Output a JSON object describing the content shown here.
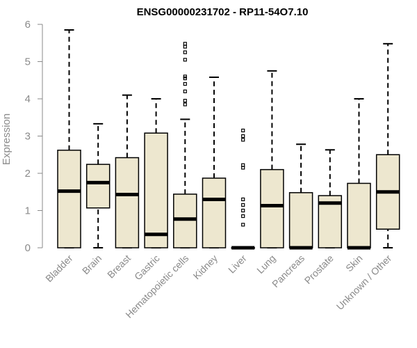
{
  "chart_data": {
    "type": "boxplot",
    "title": "ENSG00000231702 - RP11-54O7.10",
    "ylabel": "Expression",
    "xlabel": "",
    "ylim": [
      0,
      6
    ],
    "yticks": [
      0,
      1,
      2,
      3,
      4,
      5,
      6
    ],
    "grid": false,
    "box_color": "#EDE7CF",
    "categories": [
      "Bladder",
      "Brain",
      "Breast",
      "Gastric",
      "Hematopoietic cells",
      "Kidney",
      "Liver",
      "Lung",
      "Pancreas",
      "Prostate",
      "Skin",
      "Unknown / Other"
    ],
    "boxes": [
      {
        "whisker_low": 0,
        "q1": 0,
        "median": 1.52,
        "q3": 2.62,
        "whisker_high": 5.85,
        "outliers": []
      },
      {
        "whisker_low": 0,
        "q1": 1.07,
        "median": 1.75,
        "q3": 2.24,
        "whisker_high": 3.33,
        "outliers": []
      },
      {
        "whisker_low": 0,
        "q1": 0,
        "median": 1.43,
        "q3": 2.42,
        "whisker_high": 4.1,
        "outliers": []
      },
      {
        "whisker_low": 0,
        "q1": 0,
        "median": 0.36,
        "q3": 3.08,
        "whisker_high": 4.0,
        "outliers": []
      },
      {
        "whisker_low": 0,
        "q1": 0,
        "median": 0.77,
        "q3": 1.44,
        "whisker_high": 3.45,
        "outliers": [
          3.85,
          3.95,
          4.2,
          4.4,
          4.55,
          4.6,
          5.05,
          5.25,
          5.4,
          5.48
        ]
      },
      {
        "whisker_low": 0,
        "q1": 0,
        "median": 1.3,
        "q3": 1.87,
        "whisker_high": 4.58,
        "outliers": []
      },
      {
        "whisker_low": 0,
        "q1": 0,
        "median": 0.0,
        "q3": 0.0,
        "whisker_high": 0.0,
        "outliers": [
          0.62,
          0.85,
          1.0,
          1.15,
          1.3,
          2.15,
          2.22,
          2.9,
          3.0,
          3.15
        ]
      },
      {
        "whisker_low": 0,
        "q1": 0,
        "median": 1.13,
        "q3": 2.1,
        "whisker_high": 4.75,
        "outliers": []
      },
      {
        "whisker_low": 0,
        "q1": 0,
        "median": 0.0,
        "q3": 1.48,
        "whisker_high": 2.78,
        "outliers": []
      },
      {
        "whisker_low": 0,
        "q1": 0,
        "median": 1.2,
        "q3": 1.4,
        "whisker_high": 2.63,
        "outliers": []
      },
      {
        "whisker_low": 0,
        "q1": 0,
        "median": 0.0,
        "q3": 1.73,
        "whisker_high": 4.0,
        "outliers": []
      },
      {
        "whisker_low": 0,
        "q1": 0.5,
        "median": 1.5,
        "q3": 2.5,
        "whisker_high": 5.48,
        "outliers": []
      }
    ]
  }
}
